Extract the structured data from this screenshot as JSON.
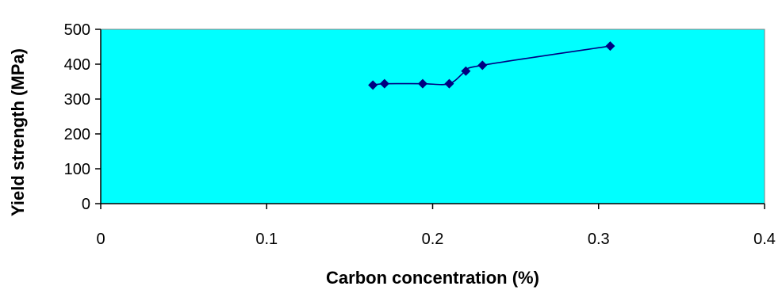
{
  "chart_data": {
    "type": "scatter",
    "title": "",
    "xlabel": "Carbon concentration (%)",
    "ylabel": "Yield strength (MPa)",
    "xlim": [
      0,
      0.4
    ],
    "ylim": [
      0,
      500
    ],
    "x_ticks": [
      "0",
      "0.1",
      "0.2",
      "0.3",
      "0.4"
    ],
    "y_ticks": [
      "0",
      "100",
      "200",
      "300",
      "400",
      "500"
    ],
    "grid": false,
    "legend": "none",
    "series": [
      {
        "x": [
          0.164,
          0.171,
          0.194,
          0.21,
          0.22,
          0.23,
          0.307
        ],
        "y": [
          340,
          344,
          344,
          344,
          380,
          397,
          452
        ]
      }
    ],
    "smoothed_line": true
  },
  "colors": {
    "plot_background": "#00ffff",
    "marker": "#000080",
    "line": "#000080",
    "axis": "#000000"
  }
}
